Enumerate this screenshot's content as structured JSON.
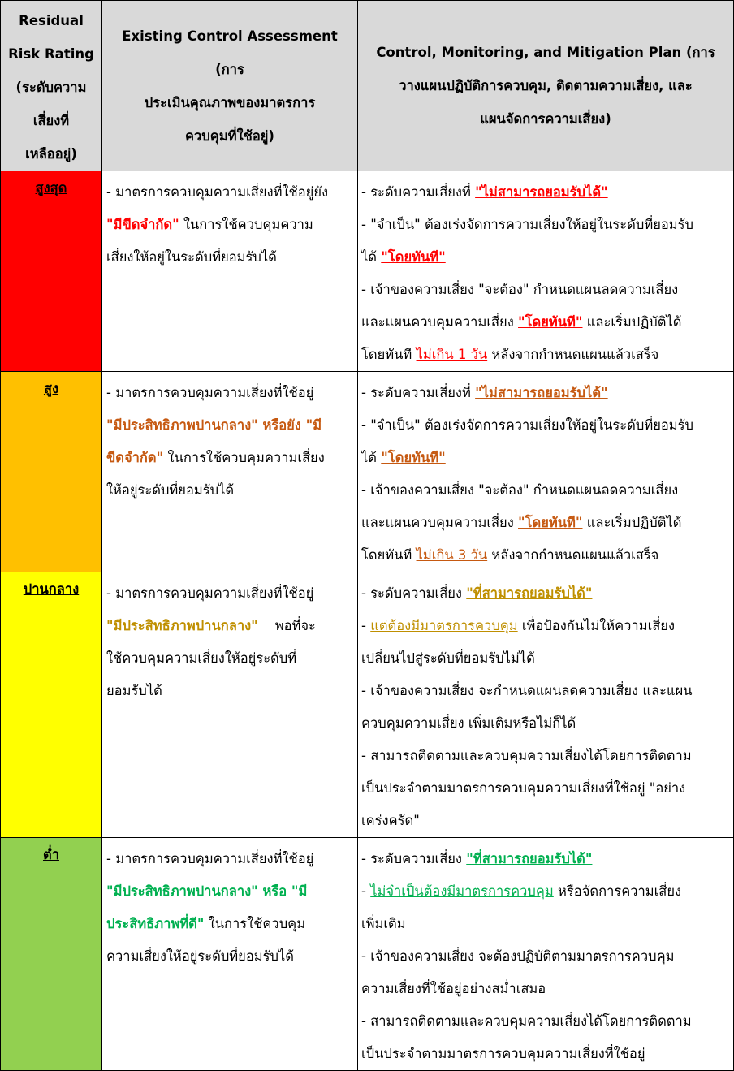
{
  "colors": {
    "header_bg": "#d9d9d9",
    "very_high": "#ff0000",
    "high": "#ffc000",
    "medium": "#ffff00",
    "low": "#92d050",
    "text_red": "#ff0000",
    "text_orange": "#c65911",
    "text_gold": "#bf8f00",
    "text_green": "#00b050"
  },
  "headers": {
    "rating": [
      "Residual",
      "Risk Rating",
      "(ระดับความ",
      "เสี่ยงที่",
      "เหลืออยู่)"
    ],
    "assessment": [
      "Existing Control Assessment (การ",
      "ประเมินคุณภาพของมาตรการ",
      "ควบคุมที่ใช้อยู่)"
    ],
    "plan": [
      "Control, Monitoring, and Mitigation Plan (การ",
      "วางแผนปฏิบัติการควบคุม, ติดตามความเสี่ยง, และ",
      "แผนจัดการความเสี่ยง)"
    ]
  },
  "rows": [
    {
      "rating": "สูงสุด",
      "assessment": [
        [
          "- มาตรการควบคุมความเสี่ยงที่ใช้อยู่ยัง"
        ],
        [
          " ",
          "\"มีขีดจำกัด\"",
          " ในการใช้ควบคุมความ"
        ],
        [
          "เสี่ยงให้อยู่ในระดับที่ยอมรับได้"
        ]
      ],
      "plan": [
        [
          "- ระดับความเสี่ยงที่ ",
          "\"ไม่สามารถยอมรับได้\""
        ],
        [
          "- \"จำเป็น\" ต้องเร่งจัดการความเสี่ยงให้อยู่ในระดับที่ยอมรับ"
        ],
        [
          "ได้ ",
          "\"โดยทันที\""
        ],
        [
          "- เจ้าของความเสี่ยง \"จะต้อง\" กำหนดแผนลดความเสี่ยง"
        ],
        [
          "และแผนควบคุมความเสี่ยง ",
          "\"โดยทันที\"",
          " และเริ่มปฏิบัติได้"
        ],
        [
          "โดยทันที ",
          "ไม่เกิน 1 วัน",
          " หลังจากกำหนดแผนแล้วเสร็จ"
        ]
      ]
    },
    {
      "rating": "สูง",
      "assessment": [
        [
          "- มาตรการควบคุมความเสี่ยงที่ใช้อยู่"
        ],
        [
          "\"มีประสิทธิภาพปานกลาง\"  หรือยัง \"มี"
        ],
        [
          "ขีดจำกัด\"",
          " ในการใช้ควบคุมความเสี่ยง"
        ],
        [
          "ให้อยู่ระดับที่ยอมรับได้"
        ]
      ],
      "plan": [
        [
          "- ระดับความเสี่ยงที่ ",
          "\"ไม่สามารถยอมรับได้\""
        ],
        [
          "- \"จำเป็น\" ต้องเร่งจัดการความเสี่ยงให้อยู่ในระดับที่ยอมรับ"
        ],
        [
          "ได้ ",
          "\"โดยทันที\""
        ],
        [
          "- เจ้าของความเสี่ยง \"จะต้อง\" กำหนดแผนลดความเสี่ยง"
        ],
        [
          "และแผนควบคุมความเสี่ยง ",
          "\"โดยทันที\"",
          " และเริ่มปฏิบัติได้"
        ],
        [
          "โดยทันที ",
          "ไม่เกิน 3 วัน",
          " หลังจากกำหนดแผนแล้วเสร็จ"
        ]
      ]
    },
    {
      "rating": "ปานกลาง",
      "assessment": [
        [
          "- มาตรการควบคุมความเสี่ยงที่ใช้อยู่"
        ],
        [
          "\"มีประสิทธิภาพปานกลาง\"",
          "    พอที่จะ"
        ],
        [
          "ใช้ควบคุมความเสี่ยงให้อยู่ระดับที่"
        ],
        [
          "ยอมรับได้"
        ]
      ],
      "plan": [
        [
          "- ระดับความเสี่ยง ",
          "\"ที่สามารถยอมรับได้\""
        ],
        [
          "- ",
          "แต่ต้องมีมาตรการควบคุม",
          " เพื่อป้องกันไม่ให้ความเสี่ยง"
        ],
        [
          "เปลี่ยนไปสู่ระดับที่ยอมรับไม่ได้"
        ],
        [
          "- เจ้าของความเสี่ยง จะกำหนดแผนลดความเสี่ยง และแผน"
        ],
        [
          "ควบคุมความเสี่ยง เพิ่มเติมหรือไม่ก็ได้"
        ],
        [
          "- สามารถติดตามและควบคุมความเสี่ยงได้โดยการติดตาม"
        ],
        [
          "เป็นประจำตามมาตรการควบคุมความเสี่ยงที่ใช้อยู่ \"อย่าง"
        ],
        [
          "เคร่งครัด\""
        ]
      ]
    },
    {
      "rating": "ต่ำ",
      "assessment": [
        [
          "- มาตรการควบคุมความเสี่ยงที่ใช้อยู่"
        ],
        [
          "\"มีประสิทธิภาพปานกลาง\"  หรือ \"มี"
        ],
        [
          "ประสิทธิภาพที่ดี\"",
          " ในการใช้ควบคุม"
        ],
        [
          "ความเสี่ยงให้อยู่ระดับที่ยอมรับได้"
        ]
      ],
      "plan": [
        [
          "- ระดับความเสี่ยง ",
          "\"ที่สามารถยอมรับได้\""
        ],
        [
          "- ",
          "ไม่จำเป็นต้องมีมาตรการควบคุม",
          " หรือจัดการความเสี่ยง"
        ],
        [
          "เพิ่มเติม"
        ],
        [
          "- เจ้าของความเสี่ยง จะต้องปฏิบัติตามมาตรการควบคุม"
        ],
        [
          "ความเสี่ยงที่ใช้อยู่อย่างสม่ำเสมอ"
        ],
        [
          "- สามารถติดตามและควบคุมความเสี่ยงได้โดยการติดตาม"
        ],
        [
          "เป็นประจำตามมาตรการควบคุมความเสี่ยงที่ใช้อยู่"
        ]
      ]
    }
  ]
}
